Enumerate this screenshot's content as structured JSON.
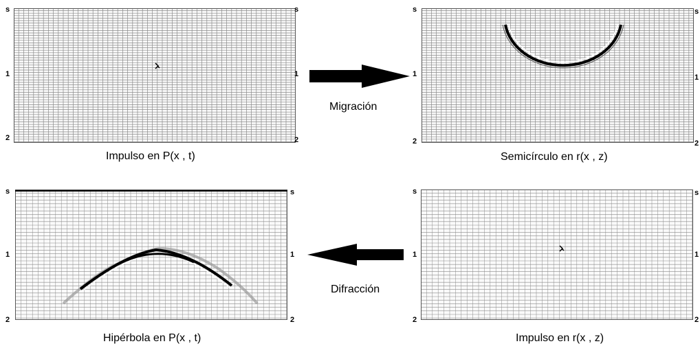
{
  "panels": {
    "impulse_pxt": {
      "caption": "Impulso en P(x , t)",
      "ticks": {
        "top_left": "s",
        "top_right": "s",
        "mid_left": "1",
        "mid_right": "1",
        "bottom_left": "2",
        "bottom_right": "2"
      }
    },
    "semicircle_rxz": {
      "caption": "Semicírculo en r(x , z)",
      "ticks": {
        "top_left": "s",
        "top_right": "s",
        "mid_left": "1",
        "mid_right": "1",
        "bottom_left": "2",
        "bottom_right": "2"
      }
    },
    "hyperbola_pxt": {
      "caption": "Hipérbola en P(x , t)",
      "ticks": {
        "top_left": "s",
        "top_right": "s",
        "mid_left": "1",
        "mid_right": "1",
        "bottom_left": "2",
        "bottom_right": "2"
      }
    },
    "impulse_rxz": {
      "caption": "Impulso en r(x , z)",
      "ticks": {
        "top_left": "s",
        "top_right": "s",
        "mid_left": "1",
        "mid_right": "1",
        "bottom_left": "2",
        "bottom_right": "2"
      }
    }
  },
  "arrows": {
    "migration": {
      "label": "Migración",
      "direction": "right"
    },
    "diffraction": {
      "label": "Difracción",
      "direction": "left"
    }
  },
  "colors": {
    "grid": "#8a8a8a",
    "ink": "#000000",
    "background": "#ffffff"
  }
}
